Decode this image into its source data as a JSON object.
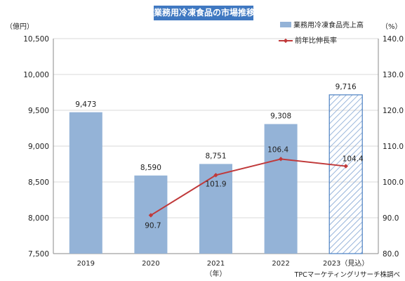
{
  "chart_data": {
    "type": "bar+line",
    "title": "業務用冷凍食品の市場推移",
    "y_left_unit": "（億円）",
    "y_right_unit": "（%）",
    "x_unit": "（年）",
    "source": "TPCマーケティングリサーチ株調べ",
    "categories": [
      "2019",
      "2020",
      "2021",
      "2022",
      "2023（見込）"
    ],
    "y_left_range": [
      7500,
      10500
    ],
    "y_left_ticks": [
      "7,500",
      "8,000",
      "8,500",
      "9,000",
      "9,500",
      "10,000",
      "10,500"
    ],
    "y_right_range": [
      80,
      140
    ],
    "y_right_ticks": [
      "80.0",
      "90.0",
      "100.0",
      "110.0",
      "120.0",
      "130.0",
      "140.0"
    ],
    "legend_position": "top-right",
    "series": [
      {
        "name": "業務用冷凍食品売上高",
        "type": "bar",
        "axis": "left",
        "values": [
          9473,
          8590,
          8751,
          9308,
          9716
        ],
        "labels": [
          "9,473",
          "8,590",
          "8,751",
          "9,308",
          "9,716"
        ],
        "hatched_last": true
      },
      {
        "name": "前年比伸長率",
        "type": "line",
        "axis": "right",
        "values": [
          null,
          90.7,
          101.9,
          106.4,
          104.4
        ],
        "labels": [
          "",
          "90.7",
          "101.9",
          "106.4",
          "104.4"
        ]
      }
    ],
    "colors": {
      "bar": "#94b3d7",
      "bar_hatch": "#4a7fc1",
      "line": "#c0393a",
      "title_bg": "#3f78c1"
    }
  }
}
